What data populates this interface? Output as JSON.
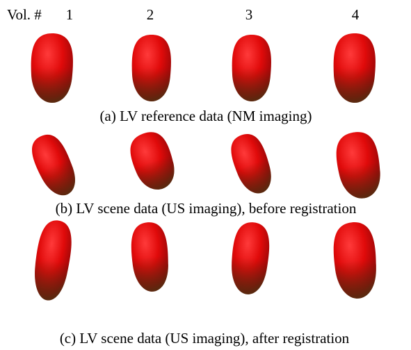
{
  "header": {
    "label": "Vol. #",
    "volumes": [
      "1",
      "2",
      "3",
      "4"
    ]
  },
  "rows": [
    {
      "caption": "(a) LV reference data (NM imaging)"
    },
    {
      "caption": "(b) LV scene data (US imaging), before registration"
    },
    {
      "caption": "(c) LV scene data (US imaging), after registration"
    }
  ]
}
